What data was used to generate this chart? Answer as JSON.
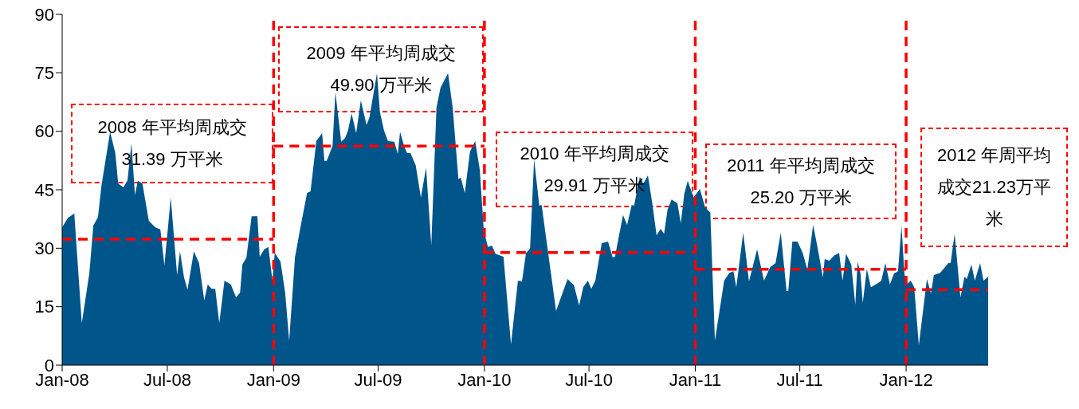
{
  "chart_data": {
    "type": "area",
    "x": [
      "2008-01-01",
      "2008-01-11",
      "2008-01-22",
      "2008-02-04",
      "2008-02-17",
      "2008-02-24",
      "2008-03-03",
      "2008-03-09",
      "2008-03-24",
      "2008-04-02",
      "2008-04-07",
      "2008-04-16",
      "2008-04-23",
      "2008-04-30",
      "2008-05-06",
      "2008-05-11",
      "2008-05-19",
      "2008-05-30",
      "2008-06-10",
      "2008-06-19",
      "2008-06-26",
      "2008-07-07",
      "2008-07-18",
      "2008-07-23",
      "2008-07-30",
      "2008-08-05",
      "2008-08-16",
      "2008-08-25",
      "2008-09-03",
      "2008-09-09",
      "2008-09-16",
      "2008-09-22",
      "2008-09-29",
      "2008-10-08",
      "2008-10-19",
      "2008-10-28",
      "2008-11-04",
      "2008-11-08",
      "2008-11-15",
      "2008-11-24",
      "2008-12-04",
      "2008-12-08",
      "2008-12-16",
      "2008-12-23",
      "2008-12-30",
      "2009-01-03",
      "2009-01-13",
      "2009-01-21",
      "2009-01-28",
      "2009-02-07",
      "2009-02-16",
      "2009-02-28",
      "2009-03-06",
      "2009-03-16",
      "2009-03-26",
      "2009-03-30",
      "2009-04-03",
      "2009-04-13",
      "2009-04-18",
      "2009-04-28",
      "2009-05-05",
      "2009-05-10",
      "2009-05-16",
      "2009-05-24",
      "2009-06-01",
      "2009-06-11",
      "2009-06-16",
      "2009-06-29",
      "2009-07-04",
      "2009-07-11",
      "2009-07-18",
      "2009-07-29",
      "2009-08-04",
      "2009-08-08",
      "2009-08-15",
      "2009-08-20",
      "2009-08-26",
      "2009-09-04",
      "2009-09-13",
      "2009-09-22",
      "2009-10-01",
      "2009-10-10",
      "2009-10-17",
      "2009-10-30",
      "2009-11-07",
      "2009-11-17",
      "2009-11-21",
      "2009-11-28",
      "2009-12-07",
      "2009-12-16",
      "2009-12-24",
      "2009-12-31",
      "2010-01-07",
      "2010-01-14",
      "2010-01-20",
      "2010-02-03",
      "2010-02-16",
      "2010-02-28",
      "2010-03-07",
      "2010-03-14",
      "2010-03-21",
      "2010-03-28",
      "2010-04-06",
      "2010-04-10",
      "2010-05-05",
      "2010-05-25",
      "2010-06-05",
      "2010-06-14",
      "2010-06-21",
      "2010-06-29",
      "2010-07-05",
      "2010-07-12",
      "2010-07-23",
      "2010-08-03",
      "2010-08-11",
      "2010-08-15",
      "2010-08-22",
      "2010-08-29",
      "2010-09-05",
      "2010-09-13",
      "2010-09-17",
      "2010-09-27",
      "2010-10-03",
      "2010-10-11",
      "2010-10-19",
      "2010-10-26",
      "2010-11-02",
      "2010-11-08",
      "2010-11-14",
      "2010-11-21",
      "2010-12-01",
      "2010-12-07",
      "2010-12-13",
      "2010-12-19",
      "2010-12-29",
      "2011-01-09",
      "2011-01-18",
      "2011-01-27",
      "2011-02-04",
      "2011-02-20",
      "2011-03-01",
      "2011-03-08",
      "2011-03-13",
      "2011-03-25",
      "2011-04-04",
      "2011-04-18",
      "2011-04-30",
      "2011-05-11",
      "2011-05-20",
      "2011-05-29",
      "2011-06-08",
      "2011-06-11",
      "2011-06-18",
      "2011-06-27",
      "2011-07-06",
      "2011-07-14",
      "2011-07-24",
      "2011-08-01",
      "2011-08-10",
      "2011-08-13",
      "2011-08-21",
      "2011-08-30",
      "2011-09-07",
      "2011-09-13",
      "2011-09-19",
      "2011-09-28",
      "2011-10-05",
      "2011-10-09",
      "2011-10-14",
      "2011-10-18",
      "2011-10-25",
      "2011-11-01",
      "2011-11-14",
      "2011-11-19",
      "2011-11-26",
      "2011-12-04",
      "2011-12-11",
      "2011-12-18",
      "2011-12-24",
      "2011-12-29",
      "2012-01-02",
      "2012-01-09",
      "2012-01-15",
      "2012-01-23",
      "2012-02-06",
      "2012-02-13",
      "2012-02-18",
      "2012-02-29",
      "2012-03-14",
      "2012-03-18",
      "2012-03-25",
      "2012-04-04",
      "2012-04-11",
      "2012-04-15",
      "2012-04-23",
      "2012-04-29",
      "2012-05-08",
      "2012-05-14",
      "2012-05-22"
    ],
    "series": [
      {
        "color": "#00558a",
        "values": [
          35.4,
          37.8,
          38.9,
          10.8,
          23.5,
          35.8,
          38.0,
          46.0,
          59.9,
          54.4,
          46.6,
          45.6,
          47.3,
          56.9,
          43.6,
          47.3,
          46.6,
          37.0,
          35.4,
          34.8,
          25.6,
          43.0,
          23.1,
          29.2,
          22.5,
          19.4,
          29.2,
          26.2,
          16.6,
          20.7,
          19.6,
          19.6,
          10.8,
          21.7,
          20.7,
          17.4,
          18.6,
          25.8,
          27.6,
          38.2,
          38.2,
          27.8,
          29.7,
          30.3,
          21.7,
          28.8,
          26.6,
          18.6,
          6.3,
          27.6,
          35.0,
          44.2,
          44.6,
          57.5,
          59.5,
          52.4,
          52.4,
          56.2,
          70.0,
          57.3,
          58.3,
          60.3,
          64.6,
          59.5,
          67.9,
          61.6,
          63.6,
          74.9,
          65.0,
          60.3,
          57.5,
          57.3,
          54.2,
          59.9,
          56.2,
          54.4,
          54.4,
          51.3,
          43.0,
          50.7,
          30.7,
          66.1,
          71.2,
          74.9,
          66.1,
          47.7,
          48.1,
          44.2,
          54.8,
          57.5,
          50.1,
          34.4,
          30.3,
          30.7,
          28.6,
          27.8,
          5.3,
          21.7,
          21.5,
          28.8,
          29.9,
          52.8,
          40.9,
          41.1,
          13.9,
          22.1,
          20.5,
          15.3,
          20.0,
          21.7,
          19.6,
          21.7,
          31.3,
          31.7,
          27.6,
          27.8,
          33.3,
          38.5,
          36.0,
          41.1,
          40.9,
          48.3,
          46.6,
          48.7,
          41.1,
          33.3,
          35.0,
          33.7,
          39.9,
          42.5,
          41.5,
          36.4,
          44.0,
          47.3,
          43.0,
          45.2,
          40.5,
          39.1,
          6.3,
          21.7,
          23.7,
          24.1,
          20.0,
          34.0,
          21.5,
          29.7,
          21.7,
          25.2,
          26.2,
          34.0,
          19.0,
          19.0,
          31.7,
          31.7,
          28.8,
          24.5,
          36.0,
          29.9,
          22.5,
          27.2,
          26.8,
          28.2,
          28.8,
          21.7,
          28.6,
          25.8,
          15.5,
          26.6,
          23.5,
          16.0,
          24.7,
          20.0,
          21.1,
          21.7,
          26.2,
          20.7,
          23.5,
          24.1,
          35.8,
          23.5,
          20.7,
          21.7,
          20.0,
          5.1,
          22.1,
          18.4,
          23.1,
          23.7,
          26.2,
          26.2,
          33.7,
          17.4,
          22.7,
          22.1,
          25.8,
          21.7,
          26.2,
          21.7,
          22.7
        ]
      },
      {
        "type": "line",
        "color": "#ff0000",
        "line_style": "dashed",
        "x": [
          "2008-01-01",
          "2009-01-01"
        ],
        "values": [
          32.3,
          32.3
        ]
      },
      {
        "type": "line",
        "color": "#ff0000",
        "line_style": "dashed",
        "x": [
          "2009-01-01",
          "2010-01-01"
        ],
        "values": [
          56.2,
          56.2
        ]
      },
      {
        "type": "line",
        "color": "#ff0000",
        "line_style": "dashed",
        "x": [
          "2010-01-01",
          "2011-01-01"
        ],
        "values": [
          28.9,
          28.9
        ]
      },
      {
        "type": "line",
        "color": "#ff0000",
        "line_style": "dashed",
        "x": [
          "2011-01-01",
          "2012-01-01"
        ],
        "values": [
          24.6,
          24.6
        ]
      },
      {
        "type": "line",
        "color": "#ff0000",
        "line_style": "dashed",
        "x": [
          "2012-01-01",
          "2012-05-22"
        ],
        "values": [
          19.4,
          19.4
        ]
      }
    ],
    "xlim": [
      "2008-01-01",
      "2012-05-22"
    ],
    "xticks": [
      {
        "value": "2008-01-01",
        "label": "Jan-08"
      },
      {
        "value": "2008-07-01",
        "label": "Jul-08"
      },
      {
        "value": "2009-01-01",
        "label": "Jan-09"
      },
      {
        "value": "2009-07-01",
        "label": "Jul-09"
      },
      {
        "value": "2010-01-01",
        "label": "Jan-10"
      },
      {
        "value": "2010-07-01",
        "label": "Jul-10"
      },
      {
        "value": "2011-01-01",
        "label": "Jan-11"
      },
      {
        "value": "2011-07-01",
        "label": "Jul-11"
      },
      {
        "value": "2012-01-01",
        "label": "Jan-12"
      }
    ],
    "ylim": [
      0,
      90
    ],
    "yticks": [
      0,
      15,
      30,
      45,
      60,
      75,
      90
    ],
    "ref_lines": [
      {
        "axis": "x",
        "value": "2009-01-01",
        "color": "#ff0000",
        "line_style": "dashed"
      },
      {
        "axis": "x",
        "value": "2010-01-01",
        "color": "#ff0000",
        "line_style": "dashed"
      },
      {
        "axis": "x",
        "value": "2011-01-01",
        "color": "#ff0000",
        "line_style": "dashed"
      },
      {
        "axis": "x",
        "value": "2012-01-01",
        "color": "#ff0000",
        "line_style": "dashed"
      }
    ],
    "annotations": [
      "2008 年平均周成交 31.39 万平米",
      "2009 年平均周成交 49.90 万平米",
      "2010 年平均周成交 29.91 万平米",
      "2011 年平均周成交 25.20 万平米",
      "2012 年周平均成交21.23万平米"
    ]
  }
}
